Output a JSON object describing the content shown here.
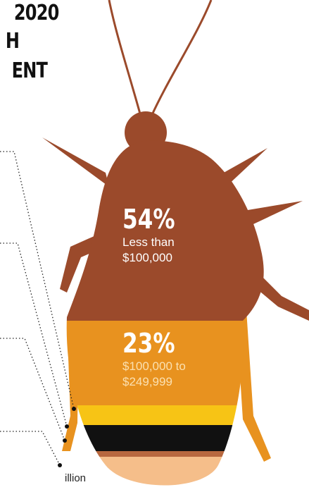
{
  "title_lines": [
    "2020",
    "H",
    "ENT"
  ],
  "segments": [
    {
      "percent_label": "54%",
      "label": "Less than $100,000"
    },
    {
      "percent_label": "23%",
      "label": "$100,000 to $249,999"
    }
  ],
  "footnote": "illion"
}
